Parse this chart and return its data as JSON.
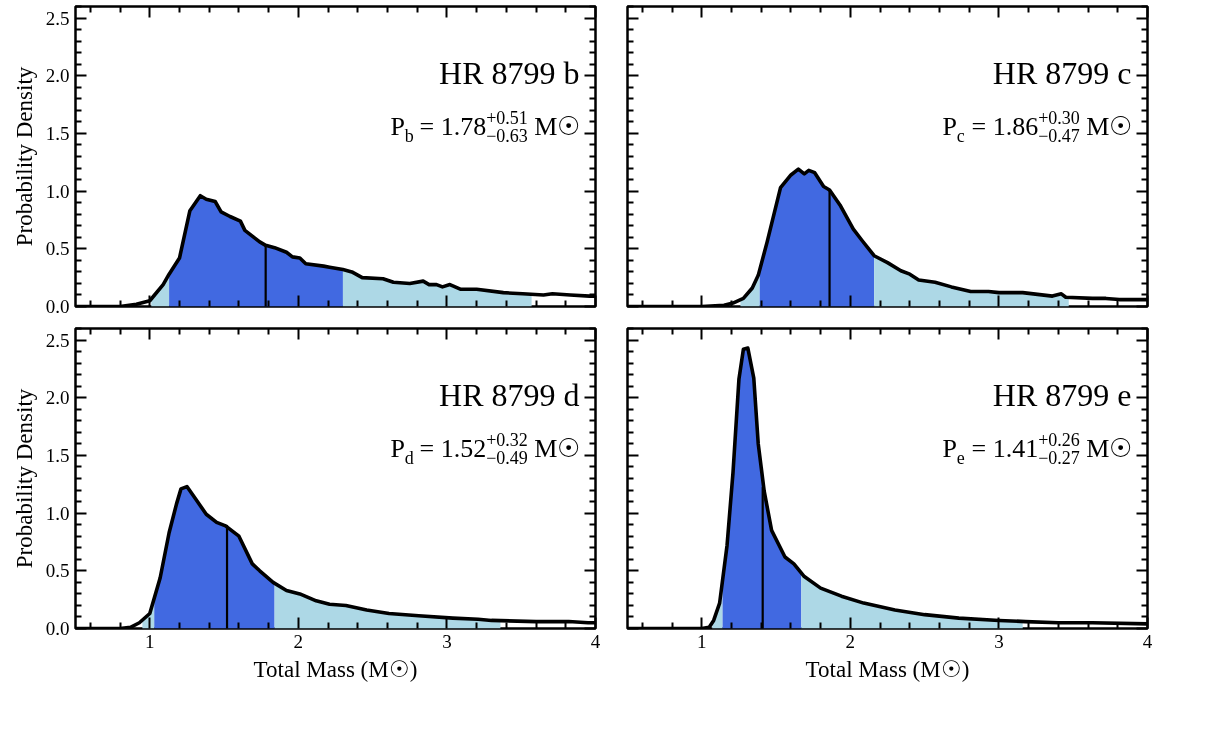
{
  "chart_data": [
    {
      "type": "area",
      "annotations": [
        "HR 8799 b",
        "P$_{b}$ = 1.78$^{+0.51}$$_{−0.63}$ M☉"
      ],
      "ylabel": "Probability Density",
      "xlim": [
        0.5,
        4
      ],
      "xticks": [
        1,
        2,
        3,
        4
      ],
      "ylim": [
        0,
        2.6
      ],
      "yticks": [
        {
          "value": 0,
          "label": "0.0"
        },
        0.5,
        {
          "value": 1,
          "label": "1.0"
        },
        1.5,
        {
          "value": 2,
          "label": "2.0"
        },
        2.5
      ],
      "tick_labels": "y",
      "grid": false,
      "series": [
        {
          "color": "#add8e6",
          "x": [
            1.01,
            1.09,
            1.13
          ],
          "values": [
            0.06,
            0.19,
            0.28
          ]
        },
        {
          "color": "#4169e1",
          "x": [
            1.13,
            1.2,
            1.27,
            1.34,
            1.38,
            1.44,
            1.48,
            1.54,
            1.61,
            1.64,
            1.74,
            1.78,
            1.84,
            1.92,
            1.96,
            2.01,
            2.05,
            2.17,
            2.21,
            2.3
          ],
          "values": [
            0.28,
            0.42,
            0.83,
            0.96,
            0.93,
            0.91,
            0.82,
            0.78,
            0.74,
            0.66,
            0.56,
            0.53,
            0.51,
            0.47,
            0.43,
            0.42,
            0.37,
            0.35,
            0.34,
            0.32
          ]
        },
        {
          "color": "#add8e6",
          "x": [
            2.3,
            2.36,
            2.43,
            2.57,
            2.64,
            2.75,
            2.84,
            2.88,
            2.93,
            2.97,
            3.02,
            3.09,
            3.2,
            3.38,
            3.51,
            3.57
          ],
          "values": [
            0.32,
            0.3,
            0.25,
            0.24,
            0.21,
            0.2,
            0.22,
            0.19,
            0.19,
            0.17,
            0.19,
            0.15,
            0.15,
            0.12,
            0.11,
            0.11
          ]
        },
        {
          "type": "line",
          "color": "#000000",
          "x": [
            0.5,
            0.6,
            0.8,
            0.91,
            1.0,
            1.09,
            1.13,
            1.2,
            1.27,
            1.34,
            1.38,
            1.44,
            1.48,
            1.54,
            1.61,
            1.64,
            1.74,
            1.78,
            1.84,
            1.92,
            1.96,
            2.01,
            2.05,
            2.17,
            2.21,
            2.3,
            2.36,
            2.43,
            2.57,
            2.64,
            2.75,
            2.84,
            2.88,
            2.93,
            2.97,
            3.02,
            3.09,
            3.2,
            3.38,
            3.51,
            3.65,
            3.71,
            3.83,
            3.96,
            4.0
          ],
          "values": [
            0,
            0,
            0,
            0.02,
            0.05,
            0.19,
            0.28,
            0.42,
            0.83,
            0.96,
            0.93,
            0.91,
            0.82,
            0.78,
            0.74,
            0.66,
            0.56,
            0.53,
            0.51,
            0.47,
            0.43,
            0.42,
            0.37,
            0.35,
            0.34,
            0.32,
            0.3,
            0.25,
            0.24,
            0.21,
            0.2,
            0.22,
            0.19,
            0.19,
            0.17,
            0.19,
            0.15,
            0.15,
            0.12,
            0.11,
            0.1,
            0.11,
            0.1,
            0.09,
            0.09
          ]
        },
        {
          "type": "line",
          "color": "#000000",
          "x": [
            1.78,
            1.78
          ],
          "values": [
            0,
            0.53
          ]
        }
      ]
    },
    {
      "type": "area",
      "annotations": [
        "HR 8799 c",
        "P$_{c}$ = 1.86$^{+0.30}$$_{−0.47}$ M☉"
      ],
      "xlim": [
        0.5,
        4
      ],
      "xticks": [
        1,
        2,
        3,
        4
      ],
      "ylim": [
        0,
        2.6
      ],
      "yticks": [
        0,
        0.5,
        1,
        1.5,
        2,
        2.5
      ],
      "tick_labels": false,
      "grid": false,
      "series": [
        {
          "color": "#add8e6",
          "x": [
            1.26,
            1.28,
            1.34,
            1.39
          ],
          "values": [
            0.06,
            0.07,
            0.16,
            0.29
          ]
        },
        {
          "color": "#4169e1",
          "x": [
            1.39,
            1.44,
            1.53,
            1.6,
            1.65,
            1.69,
            1.72,
            1.76,
            1.82,
            1.86,
            1.93,
            2.02,
            2.08,
            2.16
          ],
          "values": [
            0.29,
            0.56,
            1.03,
            1.14,
            1.19,
            1.15,
            1.18,
            1.16,
            1.04,
            1.01,
            0.88,
            0.67,
            0.57,
            0.44
          ]
        },
        {
          "color": "#add8e6",
          "x": [
            2.16,
            2.25,
            2.34,
            2.4,
            2.46,
            2.57,
            2.68,
            2.81,
            2.93,
            3.0,
            3.16,
            3.36,
            3.42,
            3.47
          ],
          "values": [
            0.44,
            0.38,
            0.31,
            0.28,
            0.23,
            0.21,
            0.17,
            0.13,
            0.13,
            0.12,
            0.12,
            0.09,
            0.11,
            0.08
          ]
        },
        {
          "type": "line",
          "color": "#000000",
          "x": [
            0.5,
            0.59,
            1.0,
            1.15,
            1.21,
            1.28,
            1.34,
            1.38,
            1.44,
            1.53,
            1.6,
            1.65,
            1.69,
            1.72,
            1.76,
            1.82,
            1.86,
            1.93,
            2.02,
            2.08,
            2.16,
            2.25,
            2.34,
            2.4,
            2.46,
            2.57,
            2.68,
            2.81,
            2.93,
            3.0,
            3.16,
            3.36,
            3.42,
            3.45,
            3.63,
            3.72,
            3.81,
            4.0
          ],
          "values": [
            0,
            0,
            0,
            0.01,
            0.03,
            0.07,
            0.16,
            0.27,
            0.56,
            1.03,
            1.14,
            1.19,
            1.15,
            1.18,
            1.16,
            1.04,
            1.01,
            0.88,
            0.67,
            0.57,
            0.44,
            0.38,
            0.31,
            0.28,
            0.23,
            0.21,
            0.17,
            0.13,
            0.13,
            0.12,
            0.12,
            0.09,
            0.11,
            0.08,
            0.07,
            0.07,
            0.06,
            0.06
          ]
        },
        {
          "type": "line",
          "color": "#000000",
          "x": [
            1.86,
            1.86
          ],
          "values": [
            0,
            1.01
          ]
        }
      ]
    },
    {
      "type": "area",
      "annotations": [
        "HR 8799 d",
        "P$_{d}$ = 1.52$^{+0.32}$$_{−0.49}$ M☉"
      ],
      "xlabel": "Total Mass (M☉)",
      "ylabel": "Probability Density",
      "xlim": [
        0.5,
        4
      ],
      "xticks": [
        1,
        2,
        3,
        4
      ],
      "ylim": [
        0,
        2.6
      ],
      "yticks": [
        {
          "value": 0,
          "label": "0.0"
        },
        0.5,
        {
          "value": 1,
          "label": "1.0"
        },
        1.5,
        {
          "value": 2,
          "label": "2.0"
        },
        2.5
      ],
      "grid": false,
      "series": [
        {
          "color": "#add8e6",
          "x": [
            0.95,
            1.0,
            1.03
          ],
          "values": [
            0.07,
            0.13,
            0.26
          ]
        },
        {
          "color": "#4169e1",
          "x": [
            1.03,
            1.07,
            1.13,
            1.18,
            1.21,
            1.25,
            1.31,
            1.38,
            1.45,
            1.51,
            1.6,
            1.69,
            1.74,
            1.83,
            1.84
          ],
          "values": [
            0.26,
            0.44,
            0.83,
            1.08,
            1.21,
            1.23,
            1.12,
            0.99,
            0.92,
            0.89,
            0.8,
            0.56,
            0.5,
            0.4,
            0.39
          ]
        },
        {
          "color": "#add8e6",
          "x": [
            1.84,
            1.92,
            2.01,
            2.12,
            2.21,
            2.32,
            2.46,
            2.61,
            2.81,
            3.04,
            3.21,
            3.3,
            3.36
          ],
          "values": [
            0.39,
            0.33,
            0.3,
            0.24,
            0.21,
            0.2,
            0.16,
            0.13,
            0.11,
            0.09,
            0.08,
            0.07,
            0.07
          ]
        },
        {
          "type": "line",
          "color": "#000000",
          "x": [
            0.5,
            0.6,
            0.8,
            0.87,
            0.93,
            1.0,
            1.07,
            1.13,
            1.18,
            1.21,
            1.25,
            1.31,
            1.38,
            1.45,
            1.51,
            1.6,
            1.69,
            1.74,
            1.83,
            1.92,
            2.01,
            2.12,
            2.21,
            2.32,
            2.46,
            2.61,
            2.81,
            3.04,
            3.21,
            3.3,
            3.6,
            3.82,
            3.95,
            4.0
          ],
          "values": [
            0,
            0,
            0,
            0.01,
            0.05,
            0.13,
            0.44,
            0.83,
            1.08,
            1.21,
            1.23,
            1.12,
            0.99,
            0.92,
            0.89,
            0.8,
            0.56,
            0.5,
            0.4,
            0.33,
            0.3,
            0.24,
            0.21,
            0.2,
            0.16,
            0.13,
            0.11,
            0.09,
            0.08,
            0.07,
            0.06,
            0.06,
            0.05,
            0.05
          ]
        },
        {
          "type": "line",
          "color": "#000000",
          "x": [
            1.52,
            1.52
          ],
          "values": [
            0,
            0.89
          ]
        }
      ]
    },
    {
      "type": "area",
      "annotations": [
        "HR 8799 e",
        "P$_{e}$ = 1.41$^{+0.26}$$_{−0.27}$ M☉"
      ],
      "xlabel": "Total Mass (M☉)",
      "xlim": [
        0.5,
        4
      ],
      "xticks": [
        1,
        2,
        3,
        4
      ],
      "ylim": [
        0,
        2.6
      ],
      "yticks": [
        0,
        0.5,
        1,
        1.5,
        2,
        2.5
      ],
      "tick_labels": "x",
      "grid": false,
      "series": [
        {
          "color": "#add8e6",
          "x": [
            1.07,
            1.08,
            1.12,
            1.14
          ],
          "values": [
            0.04,
            0.07,
            0.22,
            0.45
          ]
        },
        {
          "color": "#4169e1",
          "x": [
            1.14,
            1.17,
            1.21,
            1.25,
            1.28,
            1.31,
            1.35,
            1.38,
            1.42,
            1.47,
            1.56,
            1.62,
            1.67
          ],
          "values": [
            0.45,
            0.72,
            1.35,
            2.16,
            2.42,
            2.43,
            2.17,
            1.6,
            1.19,
            0.85,
            0.62,
            0.56,
            0.47
          ]
        },
        {
          "color": "#add8e6",
          "x": [
            1.67,
            1.69,
            1.8,
            1.94,
            2.09,
            2.3,
            2.5,
            2.73,
            3.0,
            3.16
          ],
          "values": [
            0.47,
            0.45,
            0.35,
            0.28,
            0.22,
            0.16,
            0.12,
            0.09,
            0.07,
            0.06
          ]
        },
        {
          "type": "line",
          "color": "#000000",
          "x": [
            0.5,
            0.59,
            1.0,
            1.05,
            1.08,
            1.12,
            1.17,
            1.21,
            1.25,
            1.28,
            1.31,
            1.35,
            1.38,
            1.42,
            1.47,
            1.56,
            1.62,
            1.69,
            1.8,
            1.94,
            2.09,
            2.3,
            2.5,
            2.73,
            3.0,
            3.18,
            3.4,
            3.63,
            4.0
          ],
          "values": [
            0,
            0,
            0,
            0.01,
            0.07,
            0.22,
            0.72,
            1.35,
            2.16,
            2.42,
            2.43,
            2.17,
            1.6,
            1.19,
            0.85,
            0.62,
            0.56,
            0.45,
            0.35,
            0.28,
            0.22,
            0.16,
            0.12,
            0.09,
            0.07,
            0.06,
            0.05,
            0.05,
            0.04
          ]
        },
        {
          "type": "line",
          "color": "#000000",
          "x": [
            1.41,
            1.41
          ],
          "values": [
            0,
            1.22
          ]
        }
      ]
    }
  ]
}
